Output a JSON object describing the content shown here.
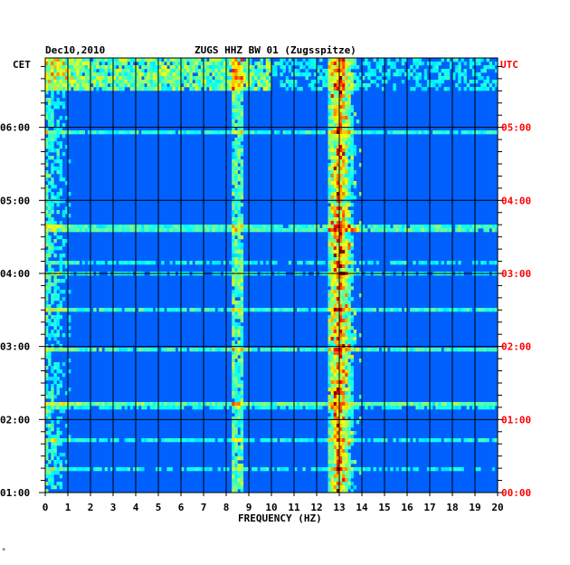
{
  "chart_data": {
    "type": "heatmap",
    "date": "Dec10,2010",
    "title": "ZUGS HHZ BW 01 (Zugsspitze)",
    "xlabel": "FREQUENCY (HZ)",
    "xlim": [
      0,
      20
    ],
    "x_ticks": [
      "0",
      "1",
      "2",
      "3",
      "4",
      "5",
      "6",
      "7",
      "8",
      "9",
      "10",
      "11",
      "12",
      "13",
      "14",
      "15",
      "16",
      "17",
      "18",
      "19",
      "20"
    ],
    "left_axis_label": "CET",
    "right_axis_label": "UTC",
    "cet_ticks": [
      "06:00",
      "05:00",
      "04:00",
      "03:00",
      "02:00",
      "01:00"
    ],
    "utc_ticks": [
      "05:00",
      "04:00",
      "03:00",
      "02:00",
      "01:00",
      "00:00"
    ],
    "time_range_utc_hours": [
      0,
      5.95
    ],
    "colorscale": [
      "#000080",
      "#0000ff",
      "#00ffff",
      "#ffff00",
      "#ff0000"
    ],
    "features": [
      {
        "name": "persistent tremor band",
        "freq_range_hz": [
          12.5,
          14.0
        ],
        "peak_hz": 13,
        "intensity": 0.55
      },
      {
        "name": "secondary band",
        "freq_range_hz": [
          8.3,
          8.8
        ],
        "intensity": 0.3
      },
      {
        "name": "low-frequency noise",
        "freq_range_hz": [
          0,
          1.5
        ],
        "intensity": 0.3
      },
      {
        "name": "broadband noise hour",
        "time_range_utc_hours": [
          5.5,
          5.95
        ],
        "intensity": 0.35
      }
    ],
    "grid": true
  },
  "colors": {
    "utc_label": "#ff0000",
    "text": "#000000"
  },
  "footnote": "*"
}
